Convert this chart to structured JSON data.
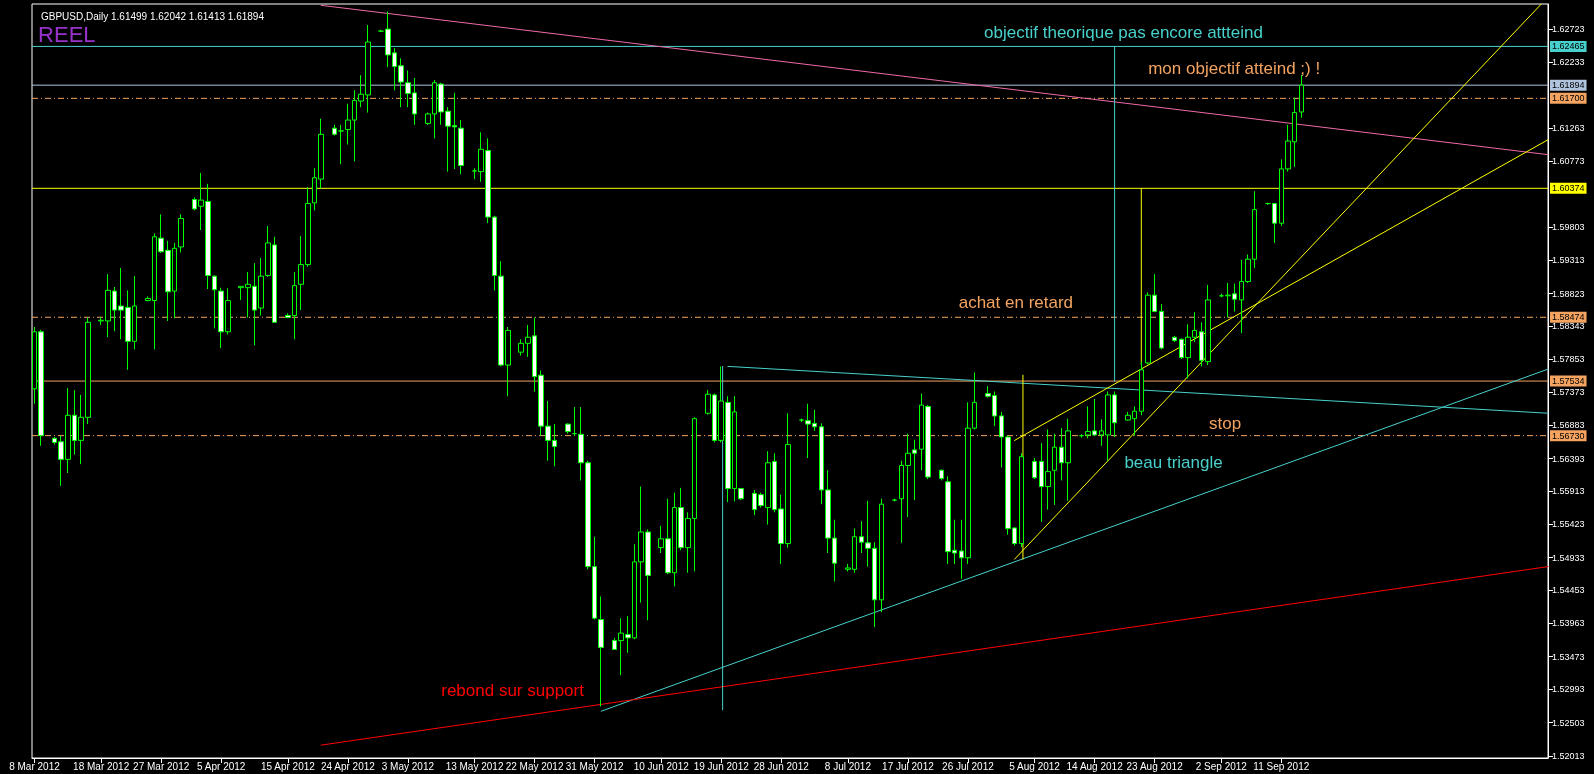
{
  "chart_data": {
    "type": "candlestick",
    "title": "GBPUSD,Daily 1.61499 1.62042 1.61413 1.61894",
    "color": "#00ff00",
    "x": [
      "2012-03-08",
      "2012-03-09",
      "2012-03-11",
      "2012-03-12",
      "2012-03-13",
      "2012-03-14",
      "2012-03-15",
      "2012-03-16",
      "2012-03-18",
      "2012-03-19",
      "2012-03-20",
      "2012-03-21",
      "2012-03-22",
      "2012-03-23",
      "2012-03-25",
      "2012-03-26",
      "2012-03-27",
      "2012-03-28",
      "2012-03-29",
      "2012-03-30",
      "2012-04-01",
      "2012-04-02",
      "2012-04-03",
      "2012-04-04",
      "2012-04-05",
      "2012-04-06",
      "2012-04-08",
      "2012-04-09",
      "2012-04-10",
      "2012-04-11",
      "2012-04-12",
      "2012-04-13",
      "2012-04-15",
      "2012-04-16",
      "2012-04-17",
      "2012-04-18",
      "2012-04-19",
      "2012-04-20",
      "2012-04-22",
      "2012-04-23",
      "2012-04-24",
      "2012-04-25",
      "2012-04-26",
      "2012-04-27",
      "2012-04-29",
      "2012-04-30",
      "2012-05-01",
      "2012-05-02",
      "2012-05-03",
      "2012-05-04",
      "2012-05-06",
      "2012-05-07",
      "2012-05-08",
      "2012-05-09",
      "2012-05-10",
      "2012-05-11",
      "2012-05-13",
      "2012-05-14",
      "2012-05-15",
      "2012-05-16",
      "2012-05-17",
      "2012-05-18",
      "2012-05-20",
      "2012-05-21",
      "2012-05-22",
      "2012-05-23",
      "2012-05-24",
      "2012-05-25",
      "2012-05-27",
      "2012-05-28",
      "2012-05-29",
      "2012-05-30",
      "2012-05-31",
      "2012-06-01",
      "2012-06-03",
      "2012-06-04",
      "2012-06-05",
      "2012-06-06",
      "2012-06-07",
      "2012-06-08",
      "2012-06-10",
      "2012-06-11",
      "2012-06-12",
      "2012-06-13",
      "2012-06-14",
      "2012-06-15",
      "2012-06-17",
      "2012-06-18",
      "2012-06-19",
      "2012-06-20",
      "2012-06-21",
      "2012-06-22",
      "2012-06-24",
      "2012-06-25",
      "2012-06-26",
      "2012-06-27",
      "2012-06-28",
      "2012-06-29",
      "2012-07-01",
      "2012-07-02",
      "2012-07-03",
      "2012-07-04",
      "2012-07-05",
      "2012-07-06",
      "2012-07-08",
      "2012-07-09",
      "2012-07-10",
      "2012-07-11",
      "2012-07-12",
      "2012-07-13",
      "2012-07-15",
      "2012-07-16",
      "2012-07-17",
      "2012-07-18",
      "2012-07-19",
      "2012-07-20",
      "2012-07-22",
      "2012-07-23",
      "2012-07-24",
      "2012-07-25",
      "2012-07-26",
      "2012-07-27",
      "2012-07-29",
      "2012-07-30",
      "2012-07-31",
      "2012-08-01",
      "2012-08-02",
      "2012-08-03",
      "2012-08-05",
      "2012-08-06",
      "2012-08-07",
      "2012-08-08",
      "2012-08-09",
      "2012-08-10",
      "2012-08-12",
      "2012-08-13",
      "2012-08-14",
      "2012-08-15",
      "2012-08-16",
      "2012-08-17",
      "2012-08-19",
      "2012-08-20",
      "2012-08-21",
      "2012-08-22",
      "2012-08-23",
      "2012-08-24",
      "2012-08-26",
      "2012-08-27",
      "2012-08-28",
      "2012-08-29",
      "2012-08-30",
      "2012-08-31",
      "2012-09-02",
      "2012-09-03",
      "2012-09-04",
      "2012-09-05",
      "2012-09-06",
      "2012-09-07",
      "2012-09-09",
      "2012-09-10",
      "2012-09-11",
      "2012-09-12",
      "2012-09-13",
      "2012-09-14"
    ],
    "ohlc": [
      [
        1.5742,
        1.5833,
        1.572,
        1.5826
      ],
      [
        1.5826,
        1.5829,
        1.5658,
        1.5673
      ],
      [
        1.5669,
        1.5671,
        1.566,
        1.5663
      ],
      [
        1.5664,
        1.5673,
        1.5599,
        1.5638
      ],
      [
        1.5638,
        1.5743,
        1.5618,
        1.5703
      ],
      [
        1.5703,
        1.574,
        1.5645,
        1.5666
      ],
      [
        1.5666,
        1.5733,
        1.5631,
        1.57
      ],
      [
        1.57,
        1.5847,
        1.569,
        1.584
      ],
      [
        1.5842,
        1.5847,
        1.5836,
        1.5843
      ],
      [
        1.5842,
        1.5911,
        1.5818,
        1.5887
      ],
      [
        1.5886,
        1.5892,
        1.5827,
        1.5858
      ],
      [
        1.5864,
        1.592,
        1.5815,
        1.5858
      ],
      [
        1.5862,
        1.5887,
        1.577,
        1.5812
      ],
      [
        1.5812,
        1.5908,
        1.58,
        1.5864
      ],
      [
        1.5872,
        1.5878,
        1.5871,
        1.5875
      ],
      [
        1.5872,
        1.5971,
        1.58,
        1.5966
      ],
      [
        1.5964,
        1.5999,
        1.5942,
        1.5944
      ],
      [
        1.5946,
        1.596,
        1.5842,
        1.5885
      ],
      [
        1.5886,
        1.5957,
        1.5846,
        1.5949
      ],
      [
        1.5951,
        1.5999,
        1.5943,
        1.5993
      ],
      [
        1.6021,
        1.6024,
        1.6005,
        1.6007
      ],
      [
        1.6011,
        1.606,
        1.5976,
        1.602
      ],
      [
        1.6018,
        1.6044,
        1.5889,
        1.5909
      ],
      [
        1.5908,
        1.5909,
        1.5831,
        1.5888
      ],
      [
        1.5886,
        1.5891,
        1.5802,
        1.5826
      ],
      [
        1.5826,
        1.589,
        1.5822,
        1.5872
      ],
      [
        1.5891,
        1.5893,
        1.5873,
        1.5893
      ],
      [
        1.5891,
        1.5914,
        1.5847,
        1.5896
      ],
      [
        1.5893,
        1.5927,
        1.5806,
        1.5858
      ],
      [
        1.5861,
        1.5935,
        1.585,
        1.5908
      ],
      [
        1.5909,
        1.5982,
        1.5907,
        1.5957
      ],
      [
        1.5954,
        1.5966,
        1.5839,
        1.584
      ],
      [
        1.585,
        1.5853,
        1.5846,
        1.5847
      ],
      [
        1.585,
        1.5914,
        1.5815,
        1.5894
      ],
      [
        1.5896,
        1.5967,
        1.5858,
        1.5925
      ],
      [
        1.5925,
        1.6039,
        1.5922,
        1.6015
      ],
      [
        1.6016,
        1.6067,
        1.6005,
        1.6053
      ],
      [
        1.6051,
        1.614,
        1.6037,
        1.6117
      ],
      [
        1.6126,
        1.6131,
        1.6115,
        1.6117
      ],
      [
        1.6122,
        1.6131,
        1.6073,
        1.6122
      ],
      [
        1.6124,
        1.6162,
        1.6102,
        1.6138
      ],
      [
        1.6138,
        1.6182,
        1.6077,
        1.6167
      ],
      [
        1.6166,
        1.6204,
        1.6157,
        1.6176
      ],
      [
        1.6175,
        1.6278,
        1.6149,
        1.6253
      ],
      [
        1.6269,
        1.6271,
        1.6268,
        1.6269
      ],
      [
        1.6272,
        1.6298,
        1.6216,
        1.6234
      ],
      [
        1.6237,
        1.6244,
        1.6182,
        1.6217
      ],
      [
        1.6218,
        1.6229,
        1.6157,
        1.6194
      ],
      [
        1.6193,
        1.6211,
        1.6157,
        1.6177
      ],
      [
        1.6178,
        1.62,
        1.6131,
        1.6147
      ],
      [
        1.6133,
        1.6149,
        1.6131,
        1.6147
      ],
      [
        1.6147,
        1.6197,
        1.6111,
        1.6193
      ],
      [
        1.6191,
        1.6193,
        1.6131,
        1.615
      ],
      [
        1.6151,
        1.6157,
        1.6062,
        1.6129
      ],
      [
        1.613,
        1.6178,
        1.6066,
        1.6128
      ],
      [
        1.6126,
        1.6138,
        1.6058,
        1.6071
      ],
      [
        1.6063,
        1.6067,
        1.6051,
        1.6063
      ],
      [
        1.6062,
        1.612,
        1.6047,
        1.6095
      ],
      [
        1.6093,
        1.6111,
        1.5986,
        1.5995
      ],
      [
        1.5995,
        1.5997,
        1.5887,
        1.5909
      ],
      [
        1.5908,
        1.593,
        1.5775,
        1.5777
      ],
      [
        1.5777,
        1.5833,
        1.5731,
        1.5828
      ],
      [
        1.5796,
        1.5815,
        1.5791,
        1.5809
      ],
      [
        1.5809,
        1.5836,
        1.5789,
        1.5818
      ],
      [
        1.582,
        1.5847,
        1.5738,
        1.576
      ],
      [
        1.5762,
        1.5769,
        1.5673,
        1.5687
      ],
      [
        1.5687,
        1.5724,
        1.5636,
        1.5666
      ],
      [
        1.5666,
        1.569,
        1.5628,
        1.5657
      ],
      [
        1.569,
        1.5691,
        1.5676,
        1.5679
      ],
      [
        1.5676,
        1.5715,
        1.5673,
        1.5676
      ],
      [
        1.5675,
        1.5715,
        1.5607,
        1.5633
      ],
      [
        1.5633,
        1.5636,
        1.5476,
        1.548
      ],
      [
        1.548,
        1.5524,
        1.5402,
        1.5404
      ],
      [
        1.5402,
        1.5436,
        1.5274,
        1.5361
      ],
      [
        1.5371,
        1.5375,
        1.5358,
        1.5358
      ],
      [
        1.5371,
        1.5404,
        1.532,
        1.5382
      ],
      [
        1.538,
        1.5407,
        1.5353,
        1.5375
      ],
      [
        1.5375,
        1.5513,
        1.5373,
        1.5487
      ],
      [
        1.5487,
        1.5598,
        1.5427,
        1.5531
      ],
      [
        1.5531,
        1.5535,
        1.5401,
        1.5467
      ],
      [
        1.5508,
        1.554,
        1.55,
        1.5521
      ],
      [
        1.5521,
        1.558,
        1.5469,
        1.5471
      ],
      [
        1.5471,
        1.5589,
        1.5451,
        1.5567
      ],
      [
        1.5567,
        1.5596,
        1.5504,
        1.5508
      ],
      [
        1.5508,
        1.556,
        1.5471,
        1.5551
      ],
      [
        1.5551,
        1.57,
        1.5473,
        1.5698
      ],
      [
        1.5706,
        1.574,
        1.5704,
        1.5734
      ],
      [
        1.5733,
        1.5735,
        1.5663,
        1.5666
      ],
      [
        1.5666,
        1.5775,
        1.5663,
        1.5724
      ],
      [
        1.5722,
        1.5731,
        1.5575,
        1.5595
      ],
      [
        1.5595,
        1.5731,
        1.5576,
        1.5708
      ],
      [
        1.5595,
        1.5596,
        1.5578,
        1.558
      ],
      [
        1.5588,
        1.5593,
        1.5556,
        1.5564
      ],
      [
        1.5586,
        1.5589,
        1.5567,
        1.557
      ],
      [
        1.5567,
        1.565,
        1.5542,
        1.5633
      ],
      [
        1.5635,
        1.5647,
        1.556,
        1.5564
      ],
      [
        1.5565,
        1.5586,
        1.5484,
        1.5514
      ],
      [
        1.5514,
        1.5706,
        1.5508,
        1.566
      ],
      [
        1.5696,
        1.5698,
        1.5693,
        1.5696
      ],
      [
        1.5695,
        1.572,
        1.564,
        1.569
      ],
      [
        1.5691,
        1.5711,
        1.568,
        1.5686
      ],
      [
        1.5686,
        1.5691,
        1.5572,
        1.5593
      ],
      [
        1.5593,
        1.5622,
        1.55,
        1.5522
      ],
      [
        1.5522,
        1.5549,
        1.5458,
        1.5485
      ],
      [
        1.5476,
        1.5484,
        1.5473,
        1.5478
      ],
      [
        1.5476,
        1.5536,
        1.5471,
        1.5524
      ],
      [
        1.5524,
        1.5547,
        1.55,
        1.5516
      ],
      [
        1.5515,
        1.5577,
        1.548,
        1.5507
      ],
      [
        1.5507,
        1.5516,
        1.5391,
        1.5431
      ],
      [
        1.5431,
        1.558,
        1.5413,
        1.5572
      ],
      [
        1.5578,
        1.558,
        1.5576,
        1.5578
      ],
      [
        1.558,
        1.5636,
        1.5515,
        1.5629
      ],
      [
        1.5629,
        1.5676,
        1.5553,
        1.5647
      ],
      [
        1.5652,
        1.5667,
        1.5578,
        1.5647
      ],
      [
        1.5653,
        1.5735,
        1.5622,
        1.5718
      ],
      [
        1.5716,
        1.5718,
        1.5609,
        1.5612
      ],
      [
        1.5622,
        1.5623,
        1.5607,
        1.561
      ],
      [
        1.5605,
        1.5613,
        1.5484,
        1.5502
      ],
      [
        1.5504,
        1.5549,
        1.5484,
        1.55
      ],
      [
        1.5503,
        1.5549,
        1.5462,
        1.5493
      ],
      [
        1.5493,
        1.5722,
        1.5484,
        1.5684
      ],
      [
        1.5684,
        1.5766,
        1.5682,
        1.5722
      ],
      [
        1.5735,
        1.5746,
        1.5729,
        1.5731
      ],
      [
        1.5732,
        1.5738,
        1.5687,
        1.5702
      ],
      [
        1.5702,
        1.5708,
        1.5626,
        1.5671
      ],
      [
        1.5671,
        1.5673,
        1.5527,
        1.5536
      ],
      [
        1.5537,
        1.5538,
        1.5511,
        1.5514
      ],
      [
        1.5514,
        1.5647,
        1.5509,
        1.5642
      ],
      [
        1.5635,
        1.564,
        1.5609,
        1.5611
      ],
      [
        1.5635,
        1.5662,
        1.5546,
        1.5598
      ],
      [
        1.5598,
        1.5682,
        1.5564,
        1.562
      ],
      [
        1.5622,
        1.5676,
        1.5571,
        1.5656
      ],
      [
        1.5656,
        1.5684,
        1.5607,
        1.5633
      ],
      [
        1.5633,
        1.5698,
        1.5577,
        1.568
      ],
      [
        1.5673,
        1.5675,
        1.567,
        1.5673
      ],
      [
        1.5674,
        1.5716,
        1.5669,
        1.5679
      ],
      [
        1.568,
        1.5727,
        1.5673,
        1.5674
      ],
      [
        1.5674,
        1.5697,
        1.5658,
        1.568
      ],
      [
        1.5674,
        1.5738,
        1.5636,
        1.5733
      ],
      [
        1.5733,
        1.5738,
        1.5671,
        1.5692
      ],
      [
        1.5696,
        1.5708,
        1.5695,
        1.5703
      ],
      [
        1.5698,
        1.5716,
        1.5673,
        1.5709
      ],
      [
        1.5709,
        1.5782,
        1.5703,
        1.577
      ],
      [
        1.578,
        1.5884,
        1.5778,
        1.588
      ],
      [
        1.588,
        1.5911,
        1.5855,
        1.5856
      ],
      [
        1.5856,
        1.5867,
        1.58,
        1.5802
      ],
      [
        1.5818,
        1.582,
        1.5811,
        1.5813
      ],
      [
        1.5815,
        1.5816,
        1.5786,
        1.5788
      ],
      [
        1.5788,
        1.5837,
        1.5757,
        1.5818
      ],
      [
        1.5818,
        1.5855,
        1.5811,
        1.5828
      ],
      [
        1.5826,
        1.584,
        1.5775,
        1.5784
      ],
      [
        1.5782,
        1.5895,
        1.5777,
        1.5873
      ],
      [
        1.5879,
        1.5882,
        1.5877,
        1.5879
      ],
      [
        1.5879,
        1.5898,
        1.5847,
        1.588
      ],
      [
        1.5882,
        1.5897,
        1.5856,
        1.5874
      ],
      [
        1.5873,
        1.5932,
        1.5824,
        1.59
      ],
      [
        1.59,
        1.594,
        1.5898,
        1.5933
      ],
      [
        1.5933,
        1.6033,
        1.592,
        1.6006
      ],
      [
        1.6015,
        1.6016,
        1.6013,
        1.6015
      ],
      [
        1.6015,
        1.6016,
        1.5957,
        1.5986
      ],
      [
        1.5986,
        1.608,
        1.5982,
        1.6066
      ],
      [
        1.6066,
        1.6131,
        1.6062,
        1.6107
      ],
      [
        1.6106,
        1.6171,
        1.6069,
        1.6149
      ],
      [
        1.61499,
        1.62042,
        1.61413,
        1.61894
      ]
    ],
    "series": [
      {
        "type": "line",
        "color": "#ee6aa7",
        "x": [
          "2012-04-20",
          "2012-10-21"
        ],
        "values": [
          1.6307,
          1.6087
        ]
      },
      {
        "type": "line",
        "color": "#48d1cc",
        "x": [
          "2012-06-20",
          "2012-10-21"
        ],
        "values": [
          1.5775,
          1.5706
        ]
      },
      {
        "type": "line",
        "color": "#48d1cc",
        "x": [
          "2012-06-01",
          "2012-10-21"
        ],
        "values": [
          1.5267,
          1.5771
        ]
      },
      {
        "type": "line",
        "color": "#ff0000",
        "x": [
          "2012-04-20",
          "2012-10-21"
        ],
        "values": [
          1.5217,
          1.548
        ]
      },
      {
        "type": "line",
        "color": "#ffff00",
        "x": [
          "2012-08-02",
          "2012-10-20"
        ],
        "values": [
          1.5491,
          1.6309
        ]
      },
      {
        "type": "line",
        "color": "#ffff00",
        "x": [
          "2012-08-02",
          "2012-10-21"
        ],
        "values": [
          1.5666,
          1.6109
        ]
      },
      {
        "type": "line",
        "color": "#48d1cc",
        "x": [
          "2012-06-19T05:00",
          "2012-06-19T05:00"
        ],
        "values": [
          1.5775,
          1.5269
        ]
      },
      {
        "type": "line",
        "color": "#ffff00",
        "x": [
          "2012-08-03T06:00",
          "2012-08-03T06:00"
        ],
        "values": [
          1.5762,
          1.5491
        ]
      },
      {
        "type": "line",
        "color": "#48d1cc",
        "x": [
          "2012-08-17",
          "2012-08-17"
        ],
        "values": [
          1.6246,
          1.5753
        ]
      },
      {
        "type": "line",
        "color": "#ffff00",
        "x": [
          "2012-08-21",
          "2012-08-21"
        ],
        "values": [
          1.6037,
          1.5778
        ]
      }
    ],
    "xlim": [
      "2012-03-07T15:00",
      "2012-10-21"
    ],
    "xticks": [
      {
        "value": "2012-03-08",
        "label": "8 Mar 2012"
      },
      {
        "value": "2012-03-18",
        "label": "18 Mar 2012"
      },
      {
        "value": "2012-03-27",
        "label": "27 Mar 2012"
      },
      {
        "value": "2012-04-05",
        "label": "5 Apr 2012"
      },
      {
        "value": "2012-04-15",
        "label": "15 Apr 2012"
      },
      {
        "value": "2012-04-24",
        "label": "24 Apr 2012"
      },
      {
        "value": "2012-05-03",
        "label": "3 May 2012"
      },
      {
        "value": "2012-05-13",
        "label": "13 May 2012"
      },
      {
        "value": "2012-05-22",
        "label": "22 May 2012"
      },
      {
        "value": "2012-05-31",
        "label": "31 May 2012"
      },
      {
        "value": "2012-06-10",
        "label": "10 Jun 2012"
      },
      {
        "value": "2012-06-19",
        "label": "19 Jun 2012"
      },
      {
        "value": "2012-06-28",
        "label": "28 Jun 2012"
      },
      {
        "value": "2012-07-08",
        "label": "8 Jul 2012"
      },
      {
        "value": "2012-07-17",
        "label": "17 Jul 2012"
      },
      {
        "value": "2012-07-26",
        "label": "26 Jul 2012"
      },
      {
        "value": "2012-08-05",
        "label": "5 Aug 2012"
      },
      {
        "value": "2012-08-14",
        "label": "14 Aug 2012"
      },
      {
        "value": "2012-08-23",
        "label": "23 Aug 2012"
      },
      {
        "value": "2012-09-02",
        "label": "2 Sep 2012"
      },
      {
        "value": "2012-09-11",
        "label": "11 Sep 2012"
      }
    ],
    "ylim": [
      1.5198,
      1.6309
    ],
    "yticks": [
      {
        "value": 1.52013,
        "label": "1.52013"
      },
      {
        "value": 1.52503,
        "label": "1.52503"
      },
      {
        "value": 1.52993,
        "label": "1.52993"
      },
      {
        "value": 1.53473,
        "label": "1.53473"
      },
      {
        "value": 1.53963,
        "label": "1.53963"
      },
      {
        "value": 1.54453,
        "label": "1.54453"
      },
      {
        "value": 1.54933,
        "label": "1.54933"
      },
      {
        "value": 1.55423,
        "label": "1.55423"
      },
      {
        "value": 1.55913,
        "label": "1.55913"
      },
      {
        "value": 1.56393,
        "label": "1.56393"
      },
      {
        "value": 1.56883,
        "label": "1.56883"
      },
      {
        "value": 1.57373,
        "label": "1.57373"
      },
      {
        "value": 1.57853,
        "label": "1.57853"
      },
      {
        "value": 1.58343,
        "label": "1.58343"
      },
      {
        "value": 1.58823,
        "label": "1.58823"
      },
      {
        "value": 1.59313,
        "label": "1.59313"
      },
      {
        "value": 1.59803,
        "label": "1.59803"
      },
      {
        "value": 1.60773,
        "label": "1.60773"
      },
      {
        "value": 1.61263,
        "label": "1.61263"
      },
      {
        "value": 1.62233,
        "label": "1.62233"
      },
      {
        "value": 1.62723,
        "label": "1.62723"
      }
    ],
    "ref_lines": [
      {
        "axis": "y",
        "value": 1.62465,
        "label": "1.62465",
        "color": "#48d1cc",
        "line_style": "solid"
      },
      {
        "axis": "y",
        "value": 1.61894,
        "label": "1.61894",
        "color": "#b0c4de",
        "line_style": "solid"
      },
      {
        "axis": "y",
        "value": 1.617,
        "label": "1.61700",
        "color": "#f4a460",
        "line_style": "dashed"
      },
      {
        "axis": "y",
        "value": 1.60374,
        "label": "1.60374",
        "color": "#ffff00",
        "line_style": "solid"
      },
      {
        "axis": "y",
        "value": 1.58474,
        "label": "1.58474",
        "color": "#f4a460",
        "line_style": "dashed"
      },
      {
        "axis": "y",
        "value": 1.57534,
        "label": "1.57534",
        "color": "#f4a460",
        "line_style": "solid"
      },
      {
        "axis": "y",
        "value": 1.5673,
        "label": "1.56730",
        "color": "#f4a460",
        "line_style": "dashed"
      }
    ],
    "annotations": [
      "REEL",
      "objectif theorique pas encore attteind",
      "mon objectif atteind ;) !",
      "achat en retard",
      "stop",
      "beau triangle",
      "rebond sur support"
    ]
  }
}
